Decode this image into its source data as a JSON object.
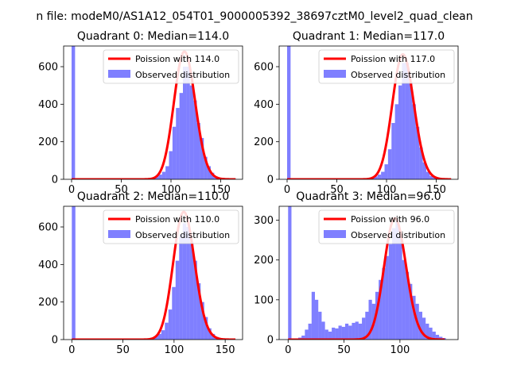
{
  "figure": {
    "suptitle": "n file: modeM0/AS1A12_054T01_9000005392_38697cztM0_level2_quad_clean"
  },
  "colors": {
    "bars": "#0000ff",
    "bar_alpha": 0.5,
    "poisson": "#ff0000",
    "axes": "#000000",
    "background": "#ffffff"
  },
  "chart_data": [
    {
      "type": "bar",
      "title": "Quadrant 0: Median=114.0",
      "median": 114.0,
      "xlim": [
        -8,
        172
      ],
      "ylim": [
        0,
        710
      ],
      "xticks": [
        0,
        50,
        100,
        150
      ],
      "yticks": [
        0,
        200,
        400,
        600
      ],
      "xticklabels": [
        "0",
        "50",
        "100",
        "150"
      ],
      "yticklabels": [
        "0",
        "200",
        "400",
        "600"
      ],
      "bin_width": 3.5,
      "legend_placement": "upper right",
      "series": [
        {
          "name": "Observed distribution",
          "kind": "histogram",
          "bins": [
            [
              0,
              710
            ],
            [
              3.5,
              3
            ],
            [
              70,
              2
            ],
            [
              73.5,
              4
            ],
            [
              77,
              6
            ],
            [
              80.5,
              10
            ],
            [
              84,
              15
            ],
            [
              87.5,
              25
            ],
            [
              91,
              40
            ],
            [
              94.5,
              70
            ],
            [
              98,
              150
            ],
            [
              101.5,
              280
            ],
            [
              105,
              380
            ],
            [
              108.5,
              460
            ],
            [
              112,
              600
            ],
            [
              115.5,
              600
            ],
            [
              119,
              500
            ],
            [
              122.5,
              420
            ],
            [
              126,
              300
            ],
            [
              129.5,
              220
            ],
            [
              133,
              120
            ],
            [
              136.5,
              70
            ],
            [
              140,
              35
            ],
            [
              143.5,
              15
            ],
            [
              147,
              8
            ],
            [
              150.5,
              4
            ],
            [
              154,
              2
            ]
          ]
        },
        {
          "name": "Poission with 114.0",
          "kind": "poisson",
          "lambda": 114.0,
          "peak": 680,
          "x_range": [
            0,
            165
          ]
        }
      ]
    },
    {
      "type": "bar",
      "title": "Quadrant 1: Median=117.0",
      "median": 117.0,
      "xlim": [
        -8,
        172
      ],
      "ylim": [
        0,
        710
      ],
      "xticks": [
        0,
        50,
        100,
        150
      ],
      "yticks": [
        0,
        200,
        400,
        600
      ],
      "xticklabels": [
        "0",
        "50",
        "100",
        "150"
      ],
      "yticklabels": [
        "0",
        "200",
        "400",
        "600"
      ],
      "bin_width": 3.5,
      "legend_placement": "upper right",
      "series": [
        {
          "name": "Observed distribution",
          "kind": "histogram",
          "bins": [
            [
              0,
              710
            ],
            [
              3.5,
              3
            ],
            [
              73.5,
              2
            ],
            [
              77,
              4
            ],
            [
              80.5,
              6
            ],
            [
              84,
              10
            ],
            [
              87.5,
              15
            ],
            [
              91,
              25
            ],
            [
              94.5,
              40
            ],
            [
              98,
              80
            ],
            [
              101.5,
              160
            ],
            [
              105,
              300
            ],
            [
              108.5,
              400
            ],
            [
              112,
              500
            ],
            [
              115.5,
              620
            ],
            [
              119,
              620
            ],
            [
              122.5,
              520
            ],
            [
              126,
              400
            ],
            [
              129.5,
              280
            ],
            [
              133,
              170
            ],
            [
              136.5,
              90
            ],
            [
              140,
              40
            ],
            [
              143.5,
              18
            ],
            [
              147,
              8
            ],
            [
              150.5,
              4
            ],
            [
              154,
              2
            ]
          ]
        },
        {
          "name": "Poission with 117.0",
          "kind": "poisson",
          "lambda": 117.0,
          "peak": 665,
          "x_range": [
            0,
            165
          ]
        }
      ]
    },
    {
      "type": "bar",
      "title": "Quadrant 2: Median=110.0",
      "median": 110.0,
      "xlim": [
        -8,
        167
      ],
      "ylim": [
        0,
        710
      ],
      "xticks": [
        0,
        50,
        100,
        150
      ],
      "yticks": [
        0,
        200,
        400,
        600
      ],
      "xticklabels": [
        "0",
        "50",
        "100",
        "150"
      ],
      "yticklabels": [
        "0",
        "200",
        "400",
        "600"
      ],
      "bin_width": 3.5,
      "legend_placement": "upper right",
      "series": [
        {
          "name": "Observed distribution",
          "kind": "histogram",
          "bins": [
            [
              0,
              710
            ],
            [
              3.5,
              3
            ],
            [
              66.5,
              2
            ],
            [
              70,
              4
            ],
            [
              73.5,
              6
            ],
            [
              77,
              10
            ],
            [
              80.5,
              18
            ],
            [
              84,
              30
            ],
            [
              87.5,
              50
            ],
            [
              91,
              90
            ],
            [
              94.5,
              160
            ],
            [
              98,
              280
            ],
            [
              101.5,
              420
            ],
            [
              105,
              560
            ],
            [
              108.5,
              620
            ],
            [
              112,
              600
            ],
            [
              115.5,
              520
            ],
            [
              119,
              420
            ],
            [
              122.5,
              300
            ],
            [
              126,
              200
            ],
            [
              129.5,
              120
            ],
            [
              133,
              60
            ],
            [
              136.5,
              30
            ],
            [
              140,
              14
            ],
            [
              143.5,
              6
            ],
            [
              147,
              3
            ]
          ]
        },
        {
          "name": "Poission with 110.0",
          "kind": "poisson",
          "lambda": 110.0,
          "peak": 680,
          "x_range": [
            0,
            160
          ]
        }
      ]
    },
    {
      "type": "bar",
      "title": "Quadrant 3: Median=96.0",
      "median": 96.0,
      "xlim": [
        -8,
        152
      ],
      "ylim": [
        0,
        335
      ],
      "xticks": [
        0,
        50,
        100
      ],
      "yticks": [
        0,
        100,
        200,
        300
      ],
      "xticklabels": [
        "0",
        "50",
        "100"
      ],
      "yticklabels": [
        "0",
        "100",
        "200",
        "300"
      ],
      "bin_width": 3,
      "legend_placement": "upper right",
      "series": [
        {
          "name": "Observed distribution",
          "kind": "histogram",
          "bins": [
            [
              0,
              335
            ],
            [
              3,
              2
            ],
            [
              6,
              3
            ],
            [
              9,
              5
            ],
            [
              12,
              10
            ],
            [
              15,
              25
            ],
            [
              18,
              40
            ],
            [
              21,
              120
            ],
            [
              24,
              100
            ],
            [
              27,
              70
            ],
            [
              30,
              45
            ],
            [
              33,
              25
            ],
            [
              36,
              20
            ],
            [
              39,
              30
            ],
            [
              42,
              28
            ],
            [
              45,
              35
            ],
            [
              48,
              32
            ],
            [
              51,
              40
            ],
            [
              54,
              35
            ],
            [
              57,
              42
            ],
            [
              60,
              45
            ],
            [
              63,
              40
            ],
            [
              66,
              55
            ],
            [
              69,
              70
            ],
            [
              72,
              100
            ],
            [
              75,
              90
            ],
            [
              78,
              120
            ],
            [
              81,
              150
            ],
            [
              84,
              180
            ],
            [
              87,
              210
            ],
            [
              90,
              240
            ],
            [
              93,
              280
            ],
            [
              96,
              300
            ],
            [
              99,
              260
            ],
            [
              102,
              200
            ],
            [
              105,
              170
            ],
            [
              108,
              140
            ],
            [
              111,
              110
            ],
            [
              114,
              90
            ],
            [
              117,
              70
            ],
            [
              120,
              55
            ],
            [
              123,
              40
            ],
            [
              126,
              30
            ],
            [
              129,
              20
            ],
            [
              132,
              12
            ],
            [
              135,
              7
            ],
            [
              138,
              4
            ]
          ]
        },
        {
          "name": "Poission with 96.0",
          "kind": "poisson",
          "lambda": 96.0,
          "peak": 305,
          "x_range": [
            0,
            140
          ]
        }
      ]
    }
  ]
}
